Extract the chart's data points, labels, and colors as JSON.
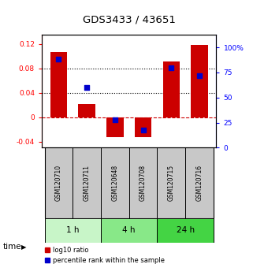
{
  "title": "GDS3433 / 43651",
  "samples": [
    "GSM120710",
    "GSM120711",
    "GSM120648",
    "GSM120708",
    "GSM120715",
    "GSM120716"
  ],
  "log10_ratio": [
    0.107,
    0.022,
    -0.033,
    -0.033,
    0.092,
    0.118
  ],
  "percentile_rank": [
    0.88,
    0.6,
    0.28,
    0.18,
    0.8,
    0.72
  ],
  "time_groups": [
    {
      "label": "1 h",
      "start": 0,
      "end": 2,
      "color": "#c8f5c8"
    },
    {
      "label": "4 h",
      "start": 2,
      "end": 4,
      "color": "#88e888"
    },
    {
      "label": "24 h",
      "start": 4,
      "end": 6,
      "color": "#44d444"
    }
  ],
  "bar_color": "#cc0000",
  "dot_color": "#0000cc",
  "ylim_left": [
    -0.05,
    0.135
  ],
  "ylim_right": [
    0,
    1.125
  ],
  "yticks_left": [
    -0.04,
    0.0,
    0.04,
    0.08,
    0.12
  ],
  "yticks_right": [
    0,
    0.25,
    0.5,
    0.75,
    1.0
  ],
  "ytick_labels_left": [
    "-0.04",
    "0",
    "0.04",
    "0.08",
    "0.12"
  ],
  "ytick_labels_right": [
    "0",
    "25",
    "50",
    "75",
    "100%"
  ],
  "hline_y": 0.0,
  "dotted_lines": [
    0.04,
    0.08
  ],
  "sample_box_color": "#c8c8c8",
  "bar_width": 0.6
}
